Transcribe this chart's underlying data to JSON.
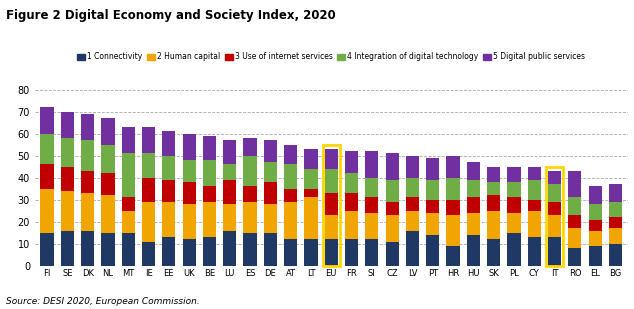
{
  "title": "Figure 2 Digital Economy and Society Index, 2020",
  "source": "Source: DESI 2020, European Commission.",
  "categories": [
    "FI",
    "SE",
    "DK",
    "NL",
    "MT",
    "IE",
    "EE",
    "UK",
    "BE",
    "LU",
    "ES",
    "DE",
    "AT",
    "LT",
    "EU",
    "FR",
    "SI",
    "CZ",
    "LV",
    "PT",
    "HR",
    "HU",
    "SK",
    "PL",
    "CY",
    "IT",
    "RO",
    "EL",
    "BG"
  ],
  "highlighted": [
    "EU",
    "IT"
  ],
  "series": [
    {
      "name": "1 Connectivity",
      "color": "#1F3864",
      "values": [
        15,
        16,
        16,
        15,
        15,
        11,
        13,
        12,
        13,
        16,
        15,
        15,
        12,
        12,
        12,
        12,
        12,
        11,
        16,
        14,
        9,
        14,
        12,
        15,
        13,
        13,
        8,
        9,
        10
      ]
    },
    {
      "name": "2 Human capital",
      "color": "#F0A500",
      "values": [
        20,
        18,
        17,
        17,
        10,
        18,
        16,
        16,
        16,
        12,
        14,
        13,
        17,
        19,
        11,
        13,
        12,
        12,
        9,
        10,
        14,
        10,
        13,
        9,
        12,
        10,
        9,
        7,
        7
      ]
    },
    {
      "name": "3 Use of internet services",
      "color": "#C00000",
      "values": [
        11,
        11,
        10,
        10,
        6,
        11,
        10,
        10,
        7,
        11,
        7,
        10,
        6,
        4,
        10,
        8,
        7,
        6,
        6,
        6,
        7,
        7,
        7,
        7,
        5,
        6,
        6,
        5,
        5
      ]
    },
    {
      "name": "4 Integration of digital technology",
      "color": "#70AD47",
      "values": [
        14,
        13,
        14,
        13,
        20,
        11,
        11,
        10,
        12,
        7,
        14,
        9,
        11,
        9,
        11,
        9,
        9,
        10,
        9,
        9,
        10,
        8,
        6,
        7,
        9,
        8,
        8,
        7,
        7
      ]
    },
    {
      "name": "5 Digital public services",
      "color": "#7030A0",
      "values": [
        12,
        12,
        12,
        12,
        12,
        12,
        11,
        12,
        11,
        11,
        8,
        10,
        9,
        9,
        9,
        10,
        12,
        12,
        10,
        10,
        10,
        8,
        7,
        7,
        6,
        6,
        12,
        8,
        8
      ]
    }
  ],
  "ylim": [
    0,
    80
  ],
  "yticks": [
    0,
    10,
    20,
    30,
    40,
    50,
    60,
    70,
    80
  ],
  "bg_color": "#FFFFFF",
  "highlight_box_color": "#FFD700"
}
